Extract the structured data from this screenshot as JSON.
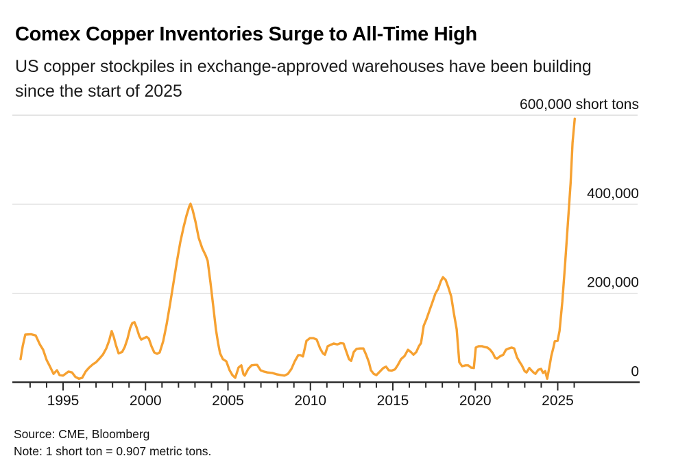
{
  "header": {
    "title": "Comex Copper Inventories Surge to All-Time High",
    "subtitle": "US copper stockpiles in exchange-approved warehouses have been building since the start of 2025"
  },
  "footer": {
    "source": "Source: CME, Bloomberg",
    "note": "Note: 1 short ton = 0.907 metric tons."
  },
  "colors": {
    "line": "#F6A131",
    "grid": "#DBDBDB",
    "axis": "#2B2B2B",
    "text": "#111111"
  },
  "chart_data": {
    "type": "line",
    "title": "Comex Copper Inventories Surge to All-Time High",
    "subtitle": "US copper stockpiles in exchange-approved warehouses have been building since the start of 2025",
    "unit": "short tons",
    "grid": true,
    "legend": "none",
    "y_axis": {
      "min": 0,
      "max": 600000,
      "ticks": [
        {
          "value": 600000,
          "label": "600,000 short tons"
        },
        {
          "value": 400000,
          "label": "400,000"
        },
        {
          "value": 200000,
          "label": "200,000"
        },
        {
          "value": 0,
          "label": "0"
        }
      ]
    },
    "x_axis": {
      "tick_start": 1993,
      "tick_end": 2026,
      "tick_interval": 1,
      "labeled_ticks": [
        1995,
        2000,
        2005,
        2010,
        2015,
        2020,
        2025
      ]
    },
    "series": [
      {
        "name": "US Comex copper stockpiles (short tons)",
        "color": "#F6A131",
        "points": [
          [
            1992.42,
            52000
          ],
          [
            1992.55,
            81000
          ],
          [
            1992.71,
            107000
          ],
          [
            1993.05,
            108000
          ],
          [
            1993.34,
            105000
          ],
          [
            1993.59,
            85000
          ],
          [
            1993.79,
            73000
          ],
          [
            1994.0,
            50000
          ],
          [
            1994.17,
            38000
          ],
          [
            1994.42,
            19000
          ],
          [
            1994.63,
            27000
          ],
          [
            1994.79,
            16000
          ],
          [
            1995.0,
            15000
          ],
          [
            1995.33,
            24000
          ],
          [
            1995.54,
            22000
          ],
          [
            1995.75,
            12000
          ],
          [
            1995.96,
            8000
          ],
          [
            1996.16,
            10000
          ],
          [
            1996.37,
            24000
          ],
          [
            1996.58,
            33000
          ],
          [
            1996.83,
            41000
          ],
          [
            1997.0,
            45000
          ],
          [
            1997.25,
            55000
          ],
          [
            1997.41,
            62000
          ],
          [
            1997.62,
            76000
          ],
          [
            1997.79,
            93000
          ],
          [
            1997.95,
            115000
          ],
          [
            1998.08,
            101000
          ],
          [
            1998.2,
            84000
          ],
          [
            1998.37,
            65000
          ],
          [
            1998.58,
            68000
          ],
          [
            1998.74,
            79000
          ],
          [
            1998.91,
            98000
          ],
          [
            1999.07,
            122000
          ],
          [
            1999.2,
            133000
          ],
          [
            1999.33,
            135000
          ],
          [
            1999.45,
            124000
          ],
          [
            1999.62,
            104000
          ],
          [
            1999.74,
            96000
          ],
          [
            1999.91,
            99000
          ],
          [
            2000.07,
            102000
          ],
          [
            2000.2,
            98000
          ],
          [
            2000.36,
            81000
          ],
          [
            2000.53,
            67000
          ],
          [
            2000.7,
            64000
          ],
          [
            2000.86,
            67000
          ],
          [
            2001.07,
            92000
          ],
          [
            2001.28,
            130000
          ],
          [
            2001.49,
            176000
          ],
          [
            2001.7,
            224000
          ],
          [
            2001.9,
            270000
          ],
          [
            2002.11,
            315000
          ],
          [
            2002.32,
            350000
          ],
          [
            2002.49,
            375000
          ],
          [
            2002.65,
            395000
          ],
          [
            2002.73,
            401000
          ],
          [
            2002.86,
            387000
          ],
          [
            2003.03,
            361000
          ],
          [
            2003.23,
            324000
          ],
          [
            2003.44,
            301000
          ],
          [
            2003.65,
            285000
          ],
          [
            2003.77,
            273000
          ],
          [
            2003.94,
            224000
          ],
          [
            2004.11,
            170000
          ],
          [
            2004.27,
            119000
          ],
          [
            2004.4,
            88000
          ],
          [
            2004.52,
            65000
          ],
          [
            2004.69,
            52000
          ],
          [
            2004.9,
            47000
          ],
          [
            2005.1,
            27000
          ],
          [
            2005.27,
            16000
          ],
          [
            2005.44,
            10000
          ],
          [
            2005.64,
            33000
          ],
          [
            2005.81,
            38000
          ],
          [
            2005.94,
            18000
          ],
          [
            2006.02,
            15000
          ],
          [
            2006.23,
            30000
          ],
          [
            2006.43,
            38000
          ],
          [
            2006.64,
            39000
          ],
          [
            2006.77,
            39000
          ],
          [
            2006.98,
            27000
          ],
          [
            2007.18,
            24000
          ],
          [
            2007.39,
            22000
          ],
          [
            2007.68,
            21000
          ],
          [
            2007.93,
            18000
          ],
          [
            2008.22,
            16000
          ],
          [
            2008.43,
            15000
          ],
          [
            2008.64,
            19000
          ],
          [
            2008.85,
            30000
          ],
          [
            2009.05,
            47000
          ],
          [
            2009.26,
            61000
          ],
          [
            2009.39,
            61000
          ],
          [
            2009.55,
            58000
          ],
          [
            2009.76,
            93000
          ],
          [
            2009.97,
            99000
          ],
          [
            2010.18,
            99000
          ],
          [
            2010.38,
            96000
          ],
          [
            2010.59,
            76000
          ],
          [
            2010.76,
            65000
          ],
          [
            2010.88,
            62000
          ],
          [
            2011.05,
            81000
          ],
          [
            2011.22,
            84000
          ],
          [
            2011.42,
            87000
          ],
          [
            2011.63,
            85000
          ],
          [
            2011.84,
            88000
          ],
          [
            2012.01,
            87000
          ],
          [
            2012.17,
            70000
          ],
          [
            2012.34,
            52000
          ],
          [
            2012.47,
            48000
          ],
          [
            2012.63,
            68000
          ],
          [
            2012.8,
            75000
          ],
          [
            2013.01,
            76000
          ],
          [
            2013.21,
            76000
          ],
          [
            2013.38,
            62000
          ],
          [
            2013.55,
            45000
          ],
          [
            2013.67,
            27000
          ],
          [
            2013.84,
            19000
          ],
          [
            2014.0,
            16000
          ],
          [
            2014.21,
            24000
          ],
          [
            2014.42,
            32000
          ],
          [
            2014.59,
            35000
          ],
          [
            2014.75,
            27000
          ],
          [
            2014.92,
            26000
          ],
          [
            2015.13,
            29000
          ],
          [
            2015.29,
            38000
          ],
          [
            2015.5,
            52000
          ],
          [
            2015.71,
            59000
          ],
          [
            2015.92,
            73000
          ],
          [
            2016.12,
            67000
          ],
          [
            2016.25,
            62000
          ],
          [
            2016.42,
            68000
          ],
          [
            2016.58,
            81000
          ],
          [
            2016.71,
            88000
          ],
          [
            2016.87,
            127000
          ],
          [
            2017.04,
            142000
          ],
          [
            2017.25,
            164000
          ],
          [
            2017.41,
            181000
          ],
          [
            2017.58,
            199000
          ],
          [
            2017.75,
            210000
          ],
          [
            2017.91,
            227000
          ],
          [
            2018.04,
            236000
          ],
          [
            2018.2,
            230000
          ],
          [
            2018.37,
            213000
          ],
          [
            2018.54,
            193000
          ],
          [
            2018.7,
            155000
          ],
          [
            2018.87,
            119000
          ],
          [
            2019.03,
            45000
          ],
          [
            2019.2,
            36000
          ],
          [
            2019.41,
            38000
          ],
          [
            2019.57,
            38000
          ],
          [
            2019.74,
            33000
          ],
          [
            2019.91,
            32000
          ],
          [
            2020.03,
            78000
          ],
          [
            2020.2,
            81000
          ],
          [
            2020.41,
            81000
          ],
          [
            2020.57,
            79000
          ],
          [
            2020.74,
            78000
          ],
          [
            2020.9,
            73000
          ],
          [
            2021.07,
            65000
          ],
          [
            2021.2,
            55000
          ],
          [
            2021.32,
            53000
          ],
          [
            2021.49,
            58000
          ],
          [
            2021.7,
            62000
          ],
          [
            2021.86,
            73000
          ],
          [
            2022.03,
            76000
          ],
          [
            2022.2,
            78000
          ],
          [
            2022.36,
            76000
          ],
          [
            2022.53,
            56000
          ],
          [
            2022.7,
            45000
          ],
          [
            2022.82,
            38000
          ],
          [
            2022.99,
            25000
          ],
          [
            2023.11,
            22000
          ],
          [
            2023.28,
            32000
          ],
          [
            2023.4,
            27000
          ],
          [
            2023.53,
            22000
          ],
          [
            2023.65,
            19000
          ],
          [
            2023.82,
            28000
          ],
          [
            2023.99,
            30000
          ],
          [
            2024.11,
            21000
          ],
          [
            2024.24,
            25000
          ],
          [
            2024.36,
            8000
          ],
          [
            2024.49,
            33000
          ],
          [
            2024.61,
            59000
          ],
          [
            2024.74,
            78000
          ],
          [
            2024.82,
            92000
          ],
          [
            2024.99,
            93000
          ],
          [
            2025.11,
            115000
          ],
          [
            2025.28,
            181000
          ],
          [
            2025.45,
            267000
          ],
          [
            2025.61,
            355000
          ],
          [
            2025.78,
            448000
          ],
          [
            2025.9,
            538000
          ],
          [
            2026.03,
            592000
          ]
        ]
      }
    ]
  }
}
